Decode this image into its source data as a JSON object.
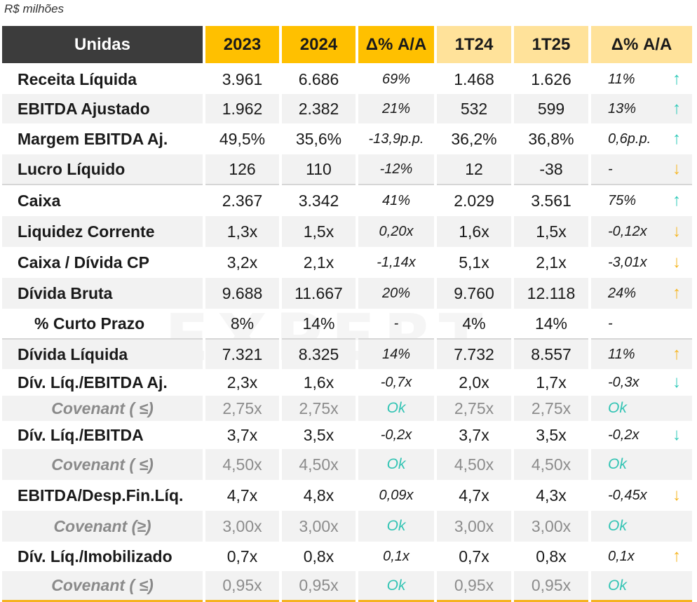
{
  "unit_note": "R$ milhões",
  "watermark": "EXPERT",
  "columns": [
    "Unidas",
    "2023",
    "2024",
    "Δ% A/A",
    "1T24",
    "1T25",
    "Δ% A/A"
  ],
  "colors": {
    "header_dark": "#3c3c3c",
    "header_annual": "#ffc000",
    "header_quarter": "#ffe29a",
    "positive_teal": "#2cc9b8",
    "negative_amber": "#f6b51f",
    "bottom_border": "#f5b21e"
  },
  "rows": [
    {
      "label": "Receita Líquida",
      "v2023": "3.961",
      "v2024": "6.686",
      "d_annual": "69%",
      "q1t24": "1.468",
      "q1t25": "1.626",
      "d_quarter": "11%",
      "arrow": "↑",
      "arrow_icon": "arrow-up-teal"
    },
    {
      "label": "EBITDA Ajustado",
      "v2023": "1.962",
      "v2024": "2.382",
      "d_annual": "21%",
      "q1t24": "532",
      "q1t25": "599",
      "d_quarter": "13%",
      "arrow": "↑",
      "arrow_icon": "arrow-up-teal"
    },
    {
      "label": "Margem EBITDA Aj.",
      "v2023": "49,5%",
      "v2024": "35,6%",
      "d_annual": "-13,9p.p.",
      "q1t24": "36,2%",
      "q1t25": "36,8%",
      "d_quarter": "0,6p.p.",
      "arrow": "↑",
      "arrow_icon": "arrow-up-teal"
    },
    {
      "label": "Lucro Líquido",
      "v2023": "126",
      "v2024": "110",
      "d_annual": "-12%",
      "q1t24": "12",
      "q1t25": "-38",
      "d_quarter": "-",
      "arrow": "↓",
      "arrow_icon": "arrow-down-amber"
    },
    {
      "label": "Caixa",
      "v2023": "2.367",
      "v2024": "3.342",
      "d_annual": "41%",
      "q1t24": "2.029",
      "q1t25": "3.561",
      "d_quarter": "75%",
      "arrow": "↑",
      "arrow_icon": "arrow-up-teal"
    },
    {
      "label": "Liquidez Corrente",
      "v2023": "1,3x",
      "v2024": "1,5x",
      "d_annual": "0,20x",
      "q1t24": "1,6x",
      "q1t25": "1,5x",
      "d_quarter": "-0,12x",
      "arrow": "↓",
      "arrow_icon": "arrow-down-amber"
    },
    {
      "label": "Caixa / Dívida CP",
      "v2023": "3,2x",
      "v2024": "2,1x",
      "d_annual": "-1,14x",
      "q1t24": "5,1x",
      "q1t25": "2,1x",
      "d_quarter": "-3,01x",
      "arrow": "↓",
      "arrow_icon": "arrow-down-amber"
    },
    {
      "label": "Dívida Bruta",
      "v2023": "9.688",
      "v2024": "11.667",
      "d_annual": "20%",
      "q1t24": "9.760",
      "q1t25": "12.118",
      "d_quarter": "24%",
      "arrow": "↑",
      "arrow_icon": "arrow-up-amber"
    },
    {
      "label": "% Curto Prazo",
      "v2023": "8%",
      "v2024": "14%",
      "d_annual": "-",
      "q1t24": "4%",
      "q1t25": "14%",
      "d_quarter": "-",
      "arrow": "",
      "arrow_icon": ""
    },
    {
      "label": "Dívida Líquida",
      "v2023": "7.321",
      "v2024": "8.325",
      "d_annual": "14%",
      "q1t24": "7.732",
      "q1t25": "8.557",
      "d_quarter": "11%",
      "arrow": "↑",
      "arrow_icon": "arrow-up-amber"
    },
    {
      "label": "Dív. Líq./EBITDA Aj.",
      "v2023": "2,3x",
      "v2024": "1,6x",
      "d_annual": "-0,7x",
      "q1t24": "2,0x",
      "q1t25": "1,7x",
      "d_quarter": "-0,3x",
      "arrow": "↓",
      "arrow_icon": "arrow-down-teal"
    },
    {
      "label": "Covenant ( ≤)",
      "v2023": "2,75x",
      "v2024": "2,75x",
      "d_annual": "Ok",
      "q1t24": "2,75x",
      "q1t25": "2,75x",
      "d_quarter": "Ok",
      "arrow": "",
      "arrow_icon": ""
    },
    {
      "label": "Dív. Líq./EBITDA",
      "v2023": "3,7x",
      "v2024": "3,5x",
      "d_annual": "-0,2x",
      "q1t24": "3,7x",
      "q1t25": "3,5x",
      "d_quarter": "-0,2x",
      "arrow": "↓",
      "arrow_icon": "arrow-down-teal"
    },
    {
      "label": "Covenant ( ≤)",
      "v2023": "4,50x",
      "v2024": "4,50x",
      "d_annual": "Ok",
      "q1t24": "4,50x",
      "q1t25": "4,50x",
      "d_quarter": "Ok",
      "arrow": "",
      "arrow_icon": ""
    },
    {
      "label": "EBITDA/Desp.Fin.Líq.",
      "v2023": "4,7x",
      "v2024": "4,8x",
      "d_annual": "0,09x",
      "q1t24": "4,7x",
      "q1t25": "4,3x",
      "d_quarter": "-0,45x",
      "arrow": "↓",
      "arrow_icon": "arrow-down-amber"
    },
    {
      "label": "Covenant (≥)",
      "v2023": "3,00x",
      "v2024": "3,00x",
      "d_annual": "Ok",
      "q1t24": "3,00x",
      "q1t25": "3,00x",
      "d_quarter": "Ok",
      "arrow": "",
      "arrow_icon": ""
    },
    {
      "label": "Dív. Líq./Imobilizado",
      "v2023": "0,7x",
      "v2024": "0,8x",
      "d_annual": "0,1x",
      "q1t24": "0,7x",
      "q1t25": "0,8x",
      "d_quarter": "0,1x",
      "arrow": "↑",
      "arrow_icon": "arrow-up-amber"
    },
    {
      "label": "Covenant ( ≤)",
      "v2023": "0,95x",
      "v2024": "0,95x",
      "d_annual": "Ok",
      "q1t24": "0,95x",
      "q1t25": "0,95x",
      "d_quarter": "Ok",
      "arrow": "",
      "arrow_icon": ""
    }
  ]
}
